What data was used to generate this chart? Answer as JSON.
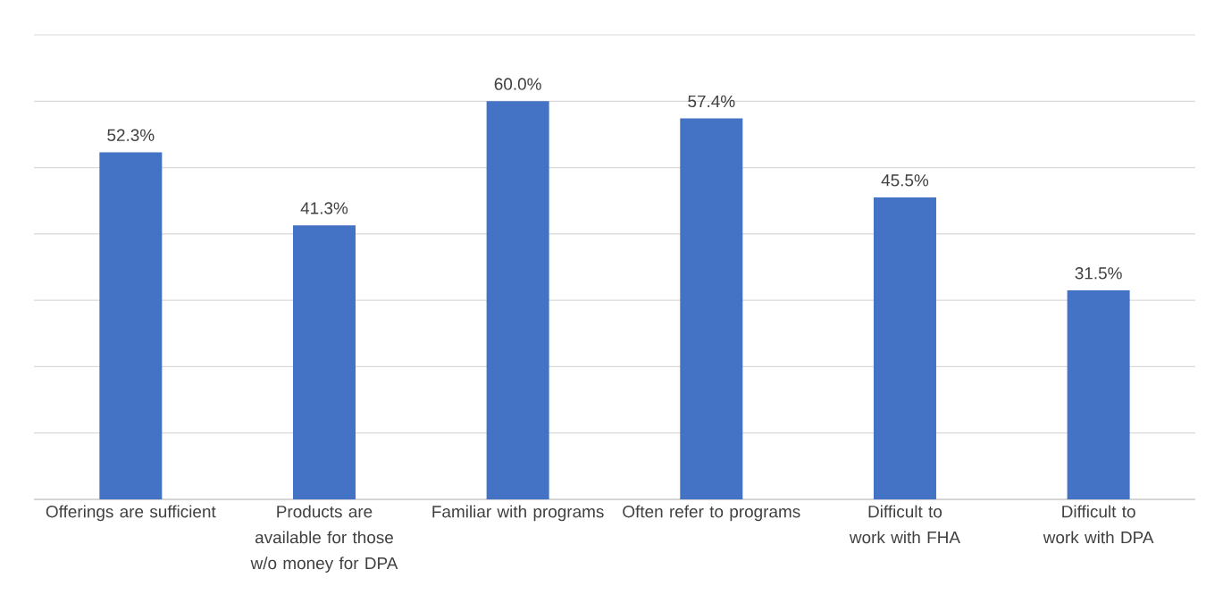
{
  "chart_data": {
    "type": "bar",
    "categories": [
      "Offerings are sufficient",
      "Products are available for those w/o money for DPA",
      "Familiar with programs",
      "Often refer to programs",
      "Difficult to work with FHA",
      "Difficult to work with DPA"
    ],
    "values": [
      52.3,
      41.3,
      60.0,
      57.4,
      45.5,
      31.5
    ],
    "value_labels": [
      "52.3%",
      "41.3%",
      "60.0%",
      "57.4%",
      "45.5%",
      "31.5%"
    ],
    "color": "#4472c4",
    "ylim": [
      0,
      70
    ],
    "yticks": [
      {
        "value": 0,
        "label": null
      },
      {
        "value": 10,
        "label": null
      },
      {
        "value": 20,
        "label": null
      },
      {
        "value": 30,
        "label": null
      },
      {
        "value": 40,
        "label": null
      },
      {
        "value": 50,
        "label": null
      },
      {
        "value": 60,
        "label": null
      },
      {
        "value": 70,
        "label": null
      }
    ],
    "grid": "y",
    "tick_labels": "x"
  }
}
